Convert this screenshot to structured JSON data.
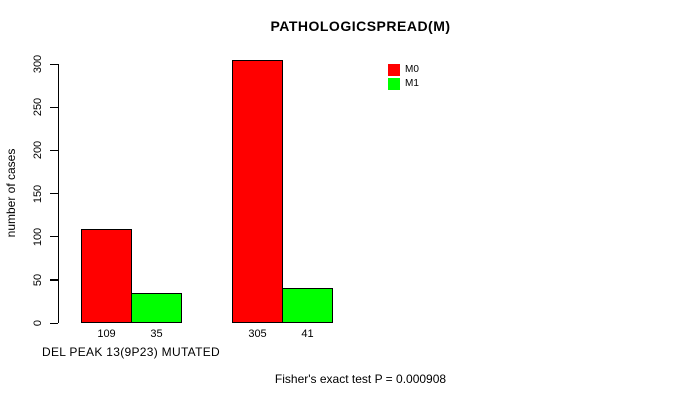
{
  "chart_data": {
    "type": "bar",
    "title": "PATHOLOGICSPREAD(M)",
    "xlabel": "DEL PEAK 13(9P23) MUTATED",
    "ylabel": "number of cases",
    "annotation": "Fisher's exact test P = 0.000908",
    "ylim": [
      0,
      300
    ],
    "yticks": [
      0,
      50,
      100,
      150,
      200,
      250,
      300
    ],
    "grid": false,
    "background": "#ffffff",
    "legend": {
      "position": "top-right-inside",
      "entries": [
        {
          "label": "M0",
          "color": "#ff0000"
        },
        {
          "label": "M1",
          "color": "#00ff00"
        }
      ]
    },
    "series": [
      {
        "name": "M0",
        "color": "#ff0000",
        "values": [
          109,
          305
        ]
      },
      {
        "name": "M1",
        "color": "#00ff00",
        "values": [
          35,
          41
        ]
      }
    ],
    "groups": [
      {
        "bars": [
          {
            "series": "M0",
            "value": 109,
            "label": "109"
          },
          {
            "series": "M1",
            "value": 35,
            "label": "35"
          }
        ]
      },
      {
        "bars": [
          {
            "series": "M0",
            "value": 305,
            "label": "305"
          },
          {
            "series": "M1",
            "value": 41,
            "label": "41"
          }
        ]
      }
    ]
  }
}
